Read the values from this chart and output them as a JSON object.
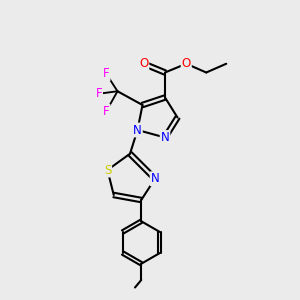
{
  "background_color": "#ebebeb",
  "bond_color": "#000000",
  "bond_width": 1.5,
  "figsize": [
    3.0,
    3.0
  ],
  "dpi": 100,
  "atoms": {
    "N": "#0000ff",
    "O": "#ff0000",
    "S": "#cccc00",
    "F": "#ff00ff",
    "C": "#000000"
  },
  "xlim": [
    0,
    10
  ],
  "ylim": [
    0,
    12
  ]
}
